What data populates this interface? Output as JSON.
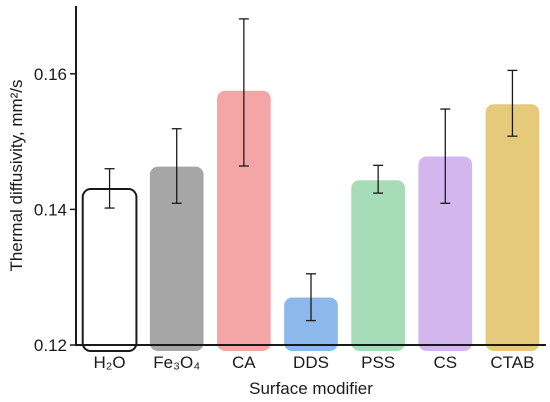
{
  "chart_data": {
    "type": "bar",
    "xlabel": "Surface modifier",
    "ylabel": "Thermal diffusivity, mm²/s",
    "ylim": [
      0.12,
      0.17
    ],
    "yticks": [
      "0.12",
      "0.14",
      "0.16"
    ],
    "categories": [
      "H₂O",
      "Fe₃O₄",
      "CA",
      "DDS",
      "PSS",
      "CS",
      "CTAB"
    ],
    "values": [
      0.143,
      0.1463,
      0.1575,
      0.127,
      0.1443,
      0.1478,
      0.1555
    ],
    "error_low": [
      0.1402,
      0.1409,
      0.1464,
      0.1236,
      0.1424,
      0.1409,
      0.1508
    ],
    "error_high": [
      0.146,
      0.1519,
      0.1681,
      0.1305,
      0.1465,
      0.1548,
      0.1605
    ],
    "colors": [
      "#ffffff",
      "#a6a6a6",
      "#f4a6a6",
      "#8db8ec",
      "#a6dcb8",
      "#d3b6ee",
      "#e6ca7c"
    ],
    "bar_outline": "#1a1a1a",
    "grid": false
  }
}
